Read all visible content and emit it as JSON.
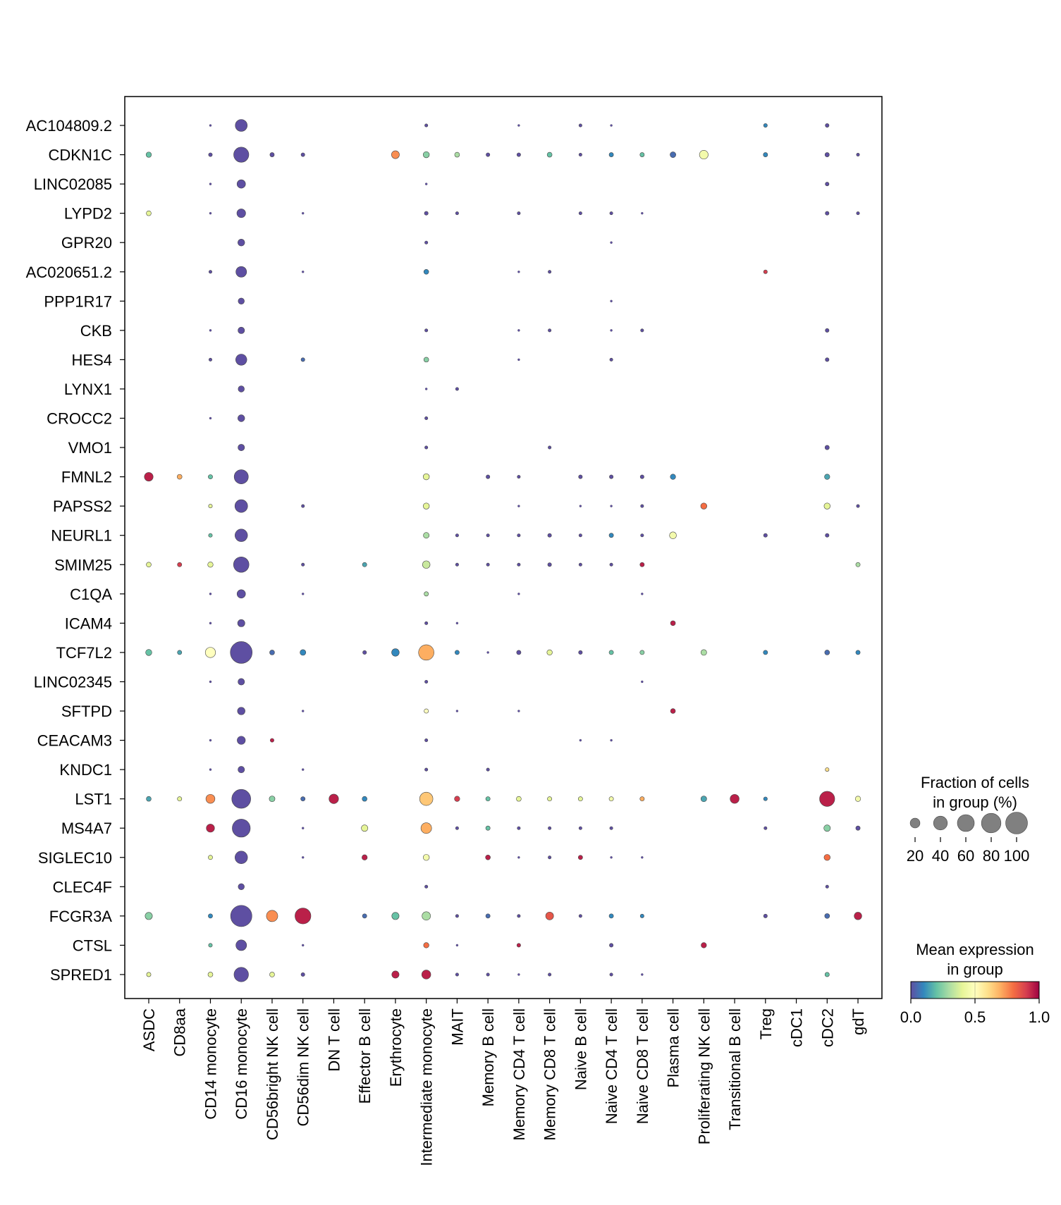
{
  "chart_data": {
    "type": "dotplot",
    "title": "",
    "xlabel": "",
    "ylabel": "",
    "genes": [
      "AC104809.2",
      "CDKN1C",
      "LINC02085",
      "LYPD2",
      "GPR20",
      "AC020651.2",
      "PPP1R17",
      "CKB",
      "HES4",
      "LYNX1",
      "CROCC2",
      "VMO1",
      "FMNL2",
      "PAPSS2",
      "NEURL1",
      "SMIM25",
      "C1QA",
      "ICAM4",
      "TCF7L2",
      "LINC02345",
      "SFTPD",
      "CEACAM3",
      "KNDC1",
      "LST1",
      "MS4A7",
      "SIGLEC10",
      "CLEC4F",
      "FCGR3A",
      "CTSL",
      "SPRED1"
    ],
    "groups": [
      "ASDC",
      "CD8aa",
      "CD14 monocyte",
      "CD16 monocyte",
      "CD56bright NK cell",
      "CD56dim NK cell",
      "DN T cell",
      "Effector B cell",
      "Erythrocyte",
      "Intermediate monocyte",
      "MAIT",
      "Memory B cell",
      "Memory CD4 T cell",
      "Memory CD8 T cell",
      "Naive B cell",
      "Naive CD4 T cell",
      "Naive CD8 T cell",
      "Plasma cell",
      "Proliferating NK cell",
      "Transitional B cell",
      "Treg",
      "cDC1",
      "cDC2",
      "gdT"
    ],
    "dots_note": "each dot: [gene_index, group_index, fraction_percent, mean_expression]",
    "dots": [
      [
        0,
        2,
        1,
        0.0
      ],
      [
        0,
        3,
        30,
        0.0
      ],
      [
        0,
        9,
        2,
        0.0
      ],
      [
        0,
        12,
        1,
        0.0
      ],
      [
        0,
        14,
        2,
        0.0
      ],
      [
        0,
        15,
        1,
        0.0
      ],
      [
        0,
        20,
        3,
        0.1
      ],
      [
        0,
        22,
        3,
        0.0
      ],
      [
        1,
        0,
        6,
        0.2
      ],
      [
        1,
        2,
        3,
        0.0
      ],
      [
        1,
        3,
        48,
        0.0
      ],
      [
        1,
        4,
        4,
        0.0
      ],
      [
        1,
        5,
        3,
        0.0
      ],
      [
        1,
        8,
        13,
        0.75
      ],
      [
        1,
        9,
        8,
        0.25
      ],
      [
        1,
        10,
        5,
        0.3
      ],
      [
        1,
        11,
        3,
        0.0
      ],
      [
        1,
        12,
        3,
        0.0
      ],
      [
        1,
        13,
        5,
        0.2
      ],
      [
        1,
        14,
        2,
        0.0
      ],
      [
        1,
        15,
        4,
        0.1
      ],
      [
        1,
        16,
        4,
        0.2
      ],
      [
        1,
        17,
        7,
        0.05
      ],
      [
        1,
        18,
        16,
        0.45
      ],
      [
        1,
        20,
        4,
        0.1
      ],
      [
        1,
        22,
        4,
        0.0
      ],
      [
        1,
        23,
        2,
        0.0
      ],
      [
        2,
        2,
        1,
        0.0
      ],
      [
        2,
        3,
        15,
        0.0
      ],
      [
        2,
        9,
        1,
        0.0
      ],
      [
        2,
        22,
        3,
        0.0
      ],
      [
        3,
        0,
        5,
        0.4
      ],
      [
        3,
        2,
        1,
        0.0
      ],
      [
        3,
        3,
        16,
        0.0
      ],
      [
        3,
        5,
        1,
        0.0
      ],
      [
        3,
        9,
        3,
        0.0
      ],
      [
        3,
        10,
        2,
        0.0
      ],
      [
        3,
        12,
        2,
        0.0
      ],
      [
        3,
        14,
        2,
        0.0
      ],
      [
        3,
        15,
        2,
        0.0
      ],
      [
        3,
        16,
        1,
        0.0
      ],
      [
        3,
        22,
        3,
        0.0
      ],
      [
        3,
        23,
        2,
        0.0
      ],
      [
        4,
        3,
        10,
        0.0
      ],
      [
        4,
        9,
        2,
        0.0
      ],
      [
        4,
        15,
        1,
        0.0
      ],
      [
        5,
        2,
        2,
        0.0
      ],
      [
        5,
        3,
        24,
        0.0
      ],
      [
        5,
        5,
        1,
        0.0
      ],
      [
        5,
        9,
        5,
        0.1
      ],
      [
        5,
        12,
        1,
        0.0
      ],
      [
        5,
        13,
        2,
        0.0
      ],
      [
        5,
        20,
        3,
        0.9
      ],
      [
        6,
        3,
        8,
        0.0
      ],
      [
        6,
        15,
        1,
        0.0
      ],
      [
        7,
        2,
        1,
        0.0
      ],
      [
        7,
        3,
        9,
        0.0
      ],
      [
        7,
        9,
        2,
        0.0
      ],
      [
        7,
        12,
        1,
        0.0
      ],
      [
        7,
        13,
        2,
        0.0
      ],
      [
        7,
        15,
        1,
        0.0
      ],
      [
        7,
        16,
        2,
        0.0
      ],
      [
        7,
        22,
        3,
        0.0
      ],
      [
        8,
        2,
        2,
        0.0
      ],
      [
        8,
        3,
        26,
        0.0
      ],
      [
        8,
        5,
        3,
        0.05
      ],
      [
        8,
        9,
        5,
        0.25
      ],
      [
        8,
        12,
        1,
        0.0
      ],
      [
        8,
        15,
        2,
        0.0
      ],
      [
        8,
        22,
        3,
        0.0
      ],
      [
        9,
        3,
        8,
        0.0
      ],
      [
        9,
        9,
        1,
        0.0
      ],
      [
        9,
        10,
        2,
        0.0
      ],
      [
        10,
        2,
        1,
        0.0
      ],
      [
        10,
        3,
        10,
        0.0
      ],
      [
        10,
        9,
        2,
        0.0
      ],
      [
        11,
        3,
        9,
        0.0
      ],
      [
        11,
        9,
        2,
        0.0
      ],
      [
        11,
        13,
        2,
        0.0
      ],
      [
        11,
        22,
        4,
        0.0
      ],
      [
        12,
        0,
        16,
        0.95
      ],
      [
        12,
        1,
        5,
        0.7
      ],
      [
        12,
        2,
        4,
        0.2
      ],
      [
        12,
        3,
        42,
        0.0
      ],
      [
        12,
        9,
        8,
        0.4
      ],
      [
        12,
        11,
        3,
        0.0
      ],
      [
        12,
        12,
        2,
        0.0
      ],
      [
        12,
        14,
        3,
        0.0
      ],
      [
        12,
        15,
        3,
        0.0
      ],
      [
        12,
        16,
        3,
        0.0
      ],
      [
        12,
        17,
        6,
        0.1
      ],
      [
        12,
        22,
        6,
        0.15
      ],
      [
        13,
        2,
        3,
        0.4
      ],
      [
        13,
        3,
        34,
        0.0
      ],
      [
        13,
        5,
        2,
        0.0
      ],
      [
        13,
        9,
        8,
        0.4
      ],
      [
        13,
        12,
        1,
        0.0
      ],
      [
        13,
        14,
        1,
        0.0
      ],
      [
        13,
        15,
        1,
        0.0
      ],
      [
        13,
        16,
        2,
        0.0
      ],
      [
        13,
        18,
        8,
        0.8
      ],
      [
        13,
        22,
        8,
        0.4
      ],
      [
        13,
        23,
        2,
        0.0
      ],
      [
        14,
        2,
        3,
        0.2
      ],
      [
        14,
        3,
        33,
        0.0
      ],
      [
        14,
        9,
        7,
        0.3
      ],
      [
        14,
        10,
        2,
        0.0
      ],
      [
        14,
        11,
        2,
        0.0
      ],
      [
        14,
        12,
        2,
        0.0
      ],
      [
        14,
        13,
        3,
        0.0
      ],
      [
        14,
        14,
        2,
        0.0
      ],
      [
        14,
        15,
        4,
        0.1
      ],
      [
        14,
        16,
        2,
        0.0
      ],
      [
        14,
        17,
        10,
        0.45
      ],
      [
        14,
        20,
        3,
        0.0
      ],
      [
        14,
        22,
        3,
        0.0
      ],
      [
        15,
        0,
        5,
        0.4
      ],
      [
        15,
        1,
        4,
        0.9
      ],
      [
        15,
        2,
        6,
        0.4
      ],
      [
        15,
        3,
        50,
        0.0
      ],
      [
        15,
        5,
        2,
        0.0
      ],
      [
        15,
        7,
        4,
        0.15
      ],
      [
        15,
        9,
        12,
        0.35
      ],
      [
        15,
        10,
        2,
        0.0
      ],
      [
        15,
        11,
        2,
        0.0
      ],
      [
        15,
        12,
        2,
        0.0
      ],
      [
        15,
        13,
        3,
        0.0
      ],
      [
        15,
        14,
        2,
        0.0
      ],
      [
        15,
        15,
        2,
        0.0
      ],
      [
        15,
        16,
        4,
        0.95
      ],
      [
        15,
        23,
        4,
        0.3
      ],
      [
        16,
        2,
        1,
        0.0
      ],
      [
        16,
        3,
        15,
        0.0
      ],
      [
        16,
        5,
        1,
        0.0
      ],
      [
        16,
        9,
        4,
        0.3
      ],
      [
        16,
        12,
        1,
        0.0
      ],
      [
        16,
        16,
        1,
        0.0
      ],
      [
        17,
        2,
        1,
        0.0
      ],
      [
        17,
        3,
        11,
        0.0
      ],
      [
        17,
        9,
        2,
        0.0
      ],
      [
        17,
        10,
        1,
        0.0
      ],
      [
        17,
        17,
        5,
        0.95
      ],
      [
        18,
        0,
        8,
        0.2
      ],
      [
        18,
        1,
        4,
        0.15
      ],
      [
        18,
        2,
        22,
        0.5
      ],
      [
        18,
        3,
        100,
        0.0
      ],
      [
        18,
        4,
        5,
        0.05
      ],
      [
        18,
        5,
        7,
        0.1
      ],
      [
        18,
        7,
        3,
        0.0
      ],
      [
        18,
        8,
        12,
        0.1
      ],
      [
        18,
        9,
        50,
        0.7
      ],
      [
        18,
        10,
        4,
        0.1
      ],
      [
        18,
        11,
        1,
        0.0
      ],
      [
        18,
        12,
        4,
        0.0
      ],
      [
        18,
        13,
        6,
        0.4
      ],
      [
        18,
        14,
        3,
        0.0
      ],
      [
        18,
        15,
        4,
        0.2
      ],
      [
        18,
        16,
        4,
        0.25
      ],
      [
        18,
        18,
        7,
        0.3
      ],
      [
        18,
        20,
        4,
        0.1
      ],
      [
        18,
        22,
        5,
        0.05
      ],
      [
        18,
        23,
        4,
        0.1
      ],
      [
        19,
        2,
        1,
        0.0
      ],
      [
        19,
        3,
        9,
        0.0
      ],
      [
        19,
        9,
        2,
        0.0
      ],
      [
        19,
        16,
        1,
        0.0
      ],
      [
        20,
        3,
        12,
        0.0
      ],
      [
        20,
        5,
        1,
        0.0
      ],
      [
        20,
        9,
        4,
        0.5
      ],
      [
        20,
        10,
        1,
        0.0
      ],
      [
        20,
        12,
        1,
        0.0
      ],
      [
        20,
        17,
        5,
        0.95
      ],
      [
        21,
        2,
        1,
        0.0
      ],
      [
        21,
        3,
        14,
        0.0
      ],
      [
        21,
        4,
        3,
        0.95
      ],
      [
        21,
        9,
        2,
        0.0
      ],
      [
        21,
        14,
        1,
        0.0
      ],
      [
        21,
        15,
        1,
        0.0
      ],
      [
        22,
        2,
        1,
        0.0
      ],
      [
        22,
        3,
        9,
        0.0
      ],
      [
        22,
        5,
        1,
        0.0
      ],
      [
        22,
        9,
        2,
        0.0
      ],
      [
        22,
        11,
        2,
        0.0
      ],
      [
        22,
        22,
        3,
        0.6
      ],
      [
        23,
        0,
        5,
        0.15
      ],
      [
        23,
        1,
        4,
        0.4
      ],
      [
        23,
        2,
        17,
        0.75
      ],
      [
        23,
        3,
        75,
        0.0
      ],
      [
        23,
        4,
        7,
        0.25
      ],
      [
        23,
        5,
        4,
        0.05
      ],
      [
        23,
        6,
        19,
        0.95
      ],
      [
        23,
        7,
        5,
        0.1
      ],
      [
        23,
        9,
        37,
        0.65
      ],
      [
        23,
        10,
        6,
        0.9
      ],
      [
        23,
        11,
        4,
        0.2
      ],
      [
        23,
        12,
        5,
        0.4
      ],
      [
        23,
        13,
        4,
        0.4
      ],
      [
        23,
        14,
        4,
        0.4
      ],
      [
        23,
        15,
        4,
        0.45
      ],
      [
        23,
        16,
        4,
        0.7
      ],
      [
        23,
        18,
        7,
        0.15
      ],
      [
        23,
        19,
        17,
        0.95
      ],
      [
        23,
        20,
        3,
        0.1
      ],
      [
        23,
        22,
        48,
        0.95
      ],
      [
        23,
        23,
        6,
        0.45
      ],
      [
        24,
        2,
        14,
        0.95
      ],
      [
        24,
        3,
        68,
        0.0
      ],
      [
        24,
        5,
        1,
        0.0
      ],
      [
        24,
        7,
        9,
        0.4
      ],
      [
        24,
        9,
        24,
        0.7
      ],
      [
        24,
        10,
        2,
        0.0
      ],
      [
        24,
        11,
        4,
        0.2
      ],
      [
        24,
        12,
        2,
        0.0
      ],
      [
        24,
        13,
        2,
        0.0
      ],
      [
        24,
        14,
        2,
        0.0
      ],
      [
        24,
        15,
        2,
        0.0
      ],
      [
        24,
        20,
        2,
        0.0
      ],
      [
        24,
        22,
        9,
        0.25
      ],
      [
        24,
        23,
        4,
        0.0
      ],
      [
        25,
        2,
        4,
        0.4
      ],
      [
        25,
        3,
        33,
        0.0
      ],
      [
        25,
        5,
        1,
        0.0
      ],
      [
        25,
        7,
        6,
        0.95
      ],
      [
        25,
        9,
        8,
        0.45
      ],
      [
        25,
        11,
        5,
        0.95
      ],
      [
        25,
        12,
        1,
        0.0
      ],
      [
        25,
        13,
        2,
        0.0
      ],
      [
        25,
        14,
        4,
        0.95
      ],
      [
        25,
        15,
        1,
        0.0
      ],
      [
        25,
        16,
        1,
        0.0
      ],
      [
        25,
        22,
        8,
        0.8
      ],
      [
        26,
        3,
        8,
        0.0
      ],
      [
        26,
        9,
        2,
        0.0
      ],
      [
        26,
        22,
        2,
        0.0
      ],
      [
        27,
        0,
        11,
        0.25
      ],
      [
        27,
        2,
        4,
        0.1
      ],
      [
        27,
        3,
        95,
        0.0
      ],
      [
        27,
        4,
        27,
        0.75
      ],
      [
        27,
        5,
        53,
        0.95
      ],
      [
        27,
        7,
        4,
        0.05
      ],
      [
        27,
        8,
        11,
        0.2
      ],
      [
        27,
        9,
        15,
        0.3
      ],
      [
        27,
        10,
        2,
        0.0
      ],
      [
        27,
        11,
        4,
        0.05
      ],
      [
        27,
        12,
        2,
        0.0
      ],
      [
        27,
        13,
        13,
        0.85
      ],
      [
        27,
        14,
        2,
        0.0
      ],
      [
        27,
        15,
        4,
        0.1
      ],
      [
        27,
        16,
        3,
        0.1
      ],
      [
        27,
        20,
        3,
        0.0
      ],
      [
        27,
        22,
        5,
        0.05
      ],
      [
        27,
        23,
        12,
        0.95
      ],
      [
        28,
        2,
        3,
        0.2
      ],
      [
        28,
        3,
        24,
        0.0
      ],
      [
        28,
        5,
        1,
        0.0
      ],
      [
        28,
        9,
        6,
        0.8
      ],
      [
        28,
        10,
        1,
        0.0
      ],
      [
        28,
        12,
        3,
        0.95
      ],
      [
        28,
        15,
        3,
        0.0
      ],
      [
        28,
        18,
        6,
        0.95
      ],
      [
        29,
        0,
        4,
        0.4
      ],
      [
        29,
        2,
        5,
        0.4
      ],
      [
        29,
        3,
        44,
        0.0
      ],
      [
        29,
        4,
        5,
        0.4
      ],
      [
        29,
        5,
        3,
        0.0
      ],
      [
        29,
        8,
        11,
        0.95
      ],
      [
        29,
        9,
        17,
        0.95
      ],
      [
        29,
        10,
        2,
        0.0
      ],
      [
        29,
        11,
        2,
        0.0
      ],
      [
        29,
        12,
        1,
        0.0
      ],
      [
        29,
        13,
        2,
        0.0
      ],
      [
        29,
        15,
        2,
        0.0
      ],
      [
        29,
        16,
        1,
        0.0
      ],
      [
        29,
        22,
        4,
        0.2
      ]
    ],
    "size_legend": {
      "title_line1": "Fraction of cells",
      "title_line2": "in group (%)",
      "values": [
        20,
        40,
        60,
        80,
        100
      ],
      "labels": [
        "20",
        "40",
        "60",
        "80",
        "100"
      ]
    },
    "color_legend": {
      "title_line1": "Mean expression",
      "title_line2": "in group",
      "range": [
        0.0,
        1.0
      ],
      "tick_labels": [
        "0.0",
        "0.5",
        "1.0"
      ],
      "colormap": "Spectral_r",
      "stops": [
        "#5e4fa2",
        "#3288bd",
        "#66c2a5",
        "#abdda4",
        "#e6f598",
        "#ffffbf",
        "#fee08b",
        "#fdae61",
        "#f46d43",
        "#d53e4f",
        "#9e0142"
      ]
    }
  }
}
